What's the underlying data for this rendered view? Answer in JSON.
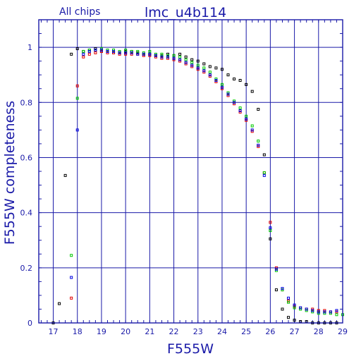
{
  "chart_data": {
    "type": "scatter",
    "title": "lmc_u4b114",
    "subtitle": "All chips",
    "xlabel": "F555W",
    "ylabel": "F555W completeness",
    "xlim": [
      16.4,
      29.0
    ],
    "ylim": [
      0,
      1.1
    ],
    "grid": true,
    "x_ticks": [
      "17",
      "18",
      "19",
      "20",
      "21",
      "22",
      "23",
      "24",
      "25",
      "26",
      "27",
      "28",
      "29"
    ],
    "y_ticks": [
      "0",
      "0.2",
      "0.4",
      "0.6",
      "0.8",
      "1"
    ],
    "colors": {
      "axis": "#1a1aa8",
      "grid": "#1a1aa8",
      "series_black": "#000000",
      "series_red": "#e00000",
      "series_green": "#00c800",
      "series_blue": "#0000e0"
    },
    "series": [
      {
        "color": "#000000",
        "x": [
          17.0,
          17.25,
          17.5,
          17.75,
          18.0,
          18.25,
          18.5,
          18.75,
          19.0,
          19.25,
          19.5,
          19.75,
          20.0,
          20.25,
          20.5,
          20.75,
          21.0,
          21.25,
          21.5,
          21.75,
          22.0,
          22.25,
          22.5,
          22.75,
          23.0,
          23.25,
          23.5,
          23.75,
          24.0,
          24.25,
          24.5,
          24.75,
          25.0,
          25.25,
          25.5,
          25.75,
          26.0,
          26.25,
          26.5,
          26.75,
          27.0,
          27.25,
          27.5,
          27.75,
          28.0,
          28.25,
          28.5,
          28.75
        ],
        "y": [
          0.0,
          0.07,
          0.535,
          0.975,
          0.995,
          0.985,
          0.99,
          0.995,
          0.985,
          0.985,
          0.98,
          0.98,
          0.985,
          0.985,
          0.98,
          0.975,
          0.975,
          0.97,
          0.97,
          0.975,
          0.97,
          0.975,
          0.965,
          0.955,
          0.95,
          0.94,
          0.93,
          0.925,
          0.92,
          0.9,
          0.885,
          0.88,
          0.865,
          0.84,
          0.775,
          0.61,
          0.305,
          0.12,
          0.05,
          0.02,
          0.01,
          0.005,
          0.005,
          0.0,
          0.0,
          0.0,
          0.0,
          0.0
        ]
      },
      {
        "color": "#e00000",
        "x": [
          17.75,
          18.0,
          18.25,
          18.5,
          18.75,
          19.0,
          19.25,
          19.5,
          19.75,
          20.0,
          20.25,
          20.5,
          20.75,
          21.0,
          21.25,
          21.5,
          21.75,
          22.0,
          22.25,
          22.5,
          22.75,
          23.0,
          23.25,
          23.5,
          23.75,
          24.0,
          24.25,
          24.5,
          24.75,
          25.0,
          25.25,
          25.5,
          25.75,
          26.0,
          26.25,
          26.5,
          26.75,
          27.0,
          27.25,
          27.5,
          27.75,
          28.0,
          28.25,
          28.5,
          28.75
        ],
        "y": [
          0.09,
          0.86,
          0.965,
          0.975,
          0.98,
          0.985,
          0.98,
          0.98,
          0.975,
          0.975,
          0.975,
          0.975,
          0.97,
          0.97,
          0.965,
          0.96,
          0.96,
          0.955,
          0.95,
          0.94,
          0.93,
          0.92,
          0.91,
          0.895,
          0.875,
          0.85,
          0.825,
          0.795,
          0.765,
          0.735,
          0.695,
          0.64,
          0.545,
          0.365,
          0.2,
          0.12,
          0.08,
          0.06,
          0.055,
          0.05,
          0.05,
          0.045,
          0.045,
          0.04,
          0.04
        ]
      },
      {
        "color": "#00c800",
        "x": [
          17.75,
          18.0,
          18.25,
          18.5,
          18.75,
          19.0,
          19.25,
          19.5,
          19.75,
          20.0,
          20.25,
          20.5,
          20.75,
          21.0,
          21.25,
          21.5,
          21.75,
          22.0,
          22.25,
          22.5,
          22.75,
          23.0,
          23.25,
          23.5,
          23.75,
          24.0,
          24.25,
          24.5,
          24.75,
          25.0,
          25.25,
          25.5,
          25.75,
          26.0,
          26.25,
          26.5,
          26.75,
          27.0,
          27.25,
          27.5,
          27.75,
          28.0,
          28.25,
          28.5,
          28.75,
          29.0
        ],
        "y": [
          0.245,
          0.815,
          0.985,
          0.99,
          0.99,
          0.995,
          0.99,
          0.99,
          0.985,
          0.99,
          0.985,
          0.985,
          0.98,
          0.985,
          0.975,
          0.975,
          0.97,
          0.97,
          0.965,
          0.955,
          0.945,
          0.935,
          0.925,
          0.91,
          0.885,
          0.865,
          0.835,
          0.805,
          0.78,
          0.75,
          0.715,
          0.66,
          0.545,
          0.335,
          0.19,
          0.12,
          0.075,
          0.055,
          0.05,
          0.045,
          0.04,
          0.035,
          0.035,
          0.035,
          0.03,
          0.03
        ]
      },
      {
        "color": "#0000e0",
        "x": [
          17.75,
          18.0,
          18.25,
          18.5,
          18.75,
          19.0,
          19.25,
          19.5,
          19.75,
          20.0,
          20.25,
          20.5,
          20.75,
          21.0,
          21.25,
          21.5,
          21.75,
          22.0,
          22.25,
          22.5,
          22.75,
          23.0,
          23.25,
          23.5,
          23.75,
          24.0,
          24.25,
          24.5,
          24.75,
          25.0,
          25.25,
          25.5,
          25.75,
          26.0,
          26.25,
          26.5,
          26.75,
          27.0,
          27.25,
          27.5,
          27.75,
          28.0,
          28.25,
          28.5,
          28.75
        ],
        "y": [
          0.165,
          0.7,
          0.975,
          0.985,
          0.99,
          0.99,
          0.985,
          0.985,
          0.98,
          0.98,
          0.98,
          0.975,
          0.975,
          0.975,
          0.97,
          0.965,
          0.965,
          0.96,
          0.955,
          0.945,
          0.935,
          0.925,
          0.915,
          0.9,
          0.88,
          0.855,
          0.83,
          0.8,
          0.77,
          0.74,
          0.7,
          0.645,
          0.535,
          0.345,
          0.195,
          0.125,
          0.09,
          0.065,
          0.055,
          0.05,
          0.045,
          0.04,
          0.04,
          0.04,
          0.045
        ]
      }
    ]
  }
}
